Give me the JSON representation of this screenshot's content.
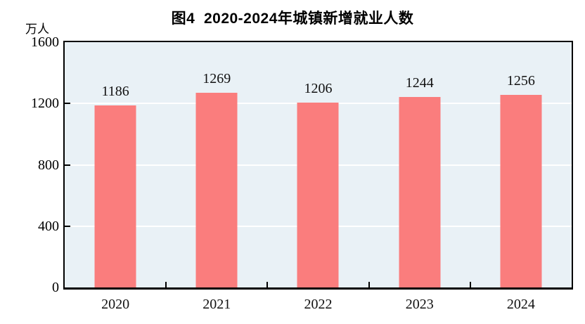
{
  "figure": {
    "title": "图4  2020-2024年城镇新增就业人数",
    "unit_label": "万人"
  },
  "chart_data": {
    "type": "bar",
    "title": "图4  2020-2024年城镇新增就业人数",
    "ylabel": "万人",
    "xlabel": "",
    "categories": [
      "2020",
      "2021",
      "2022",
      "2023",
      "2024"
    ],
    "values": [
      1186,
      1269,
      1206,
      1244,
      1256
    ],
    "ylim": [
      0,
      1600
    ],
    "yticks": [
      0,
      400,
      800,
      1200,
      1600
    ],
    "grid": "horizontal-white-lines",
    "legend_position": "none",
    "data_labels_shown": true,
    "colors": {
      "bar": "#fa7d7d",
      "plot_background": "#e9f1f6",
      "gridline": "#ffffff",
      "axis": "#000000",
      "text": "#000000"
    }
  }
}
